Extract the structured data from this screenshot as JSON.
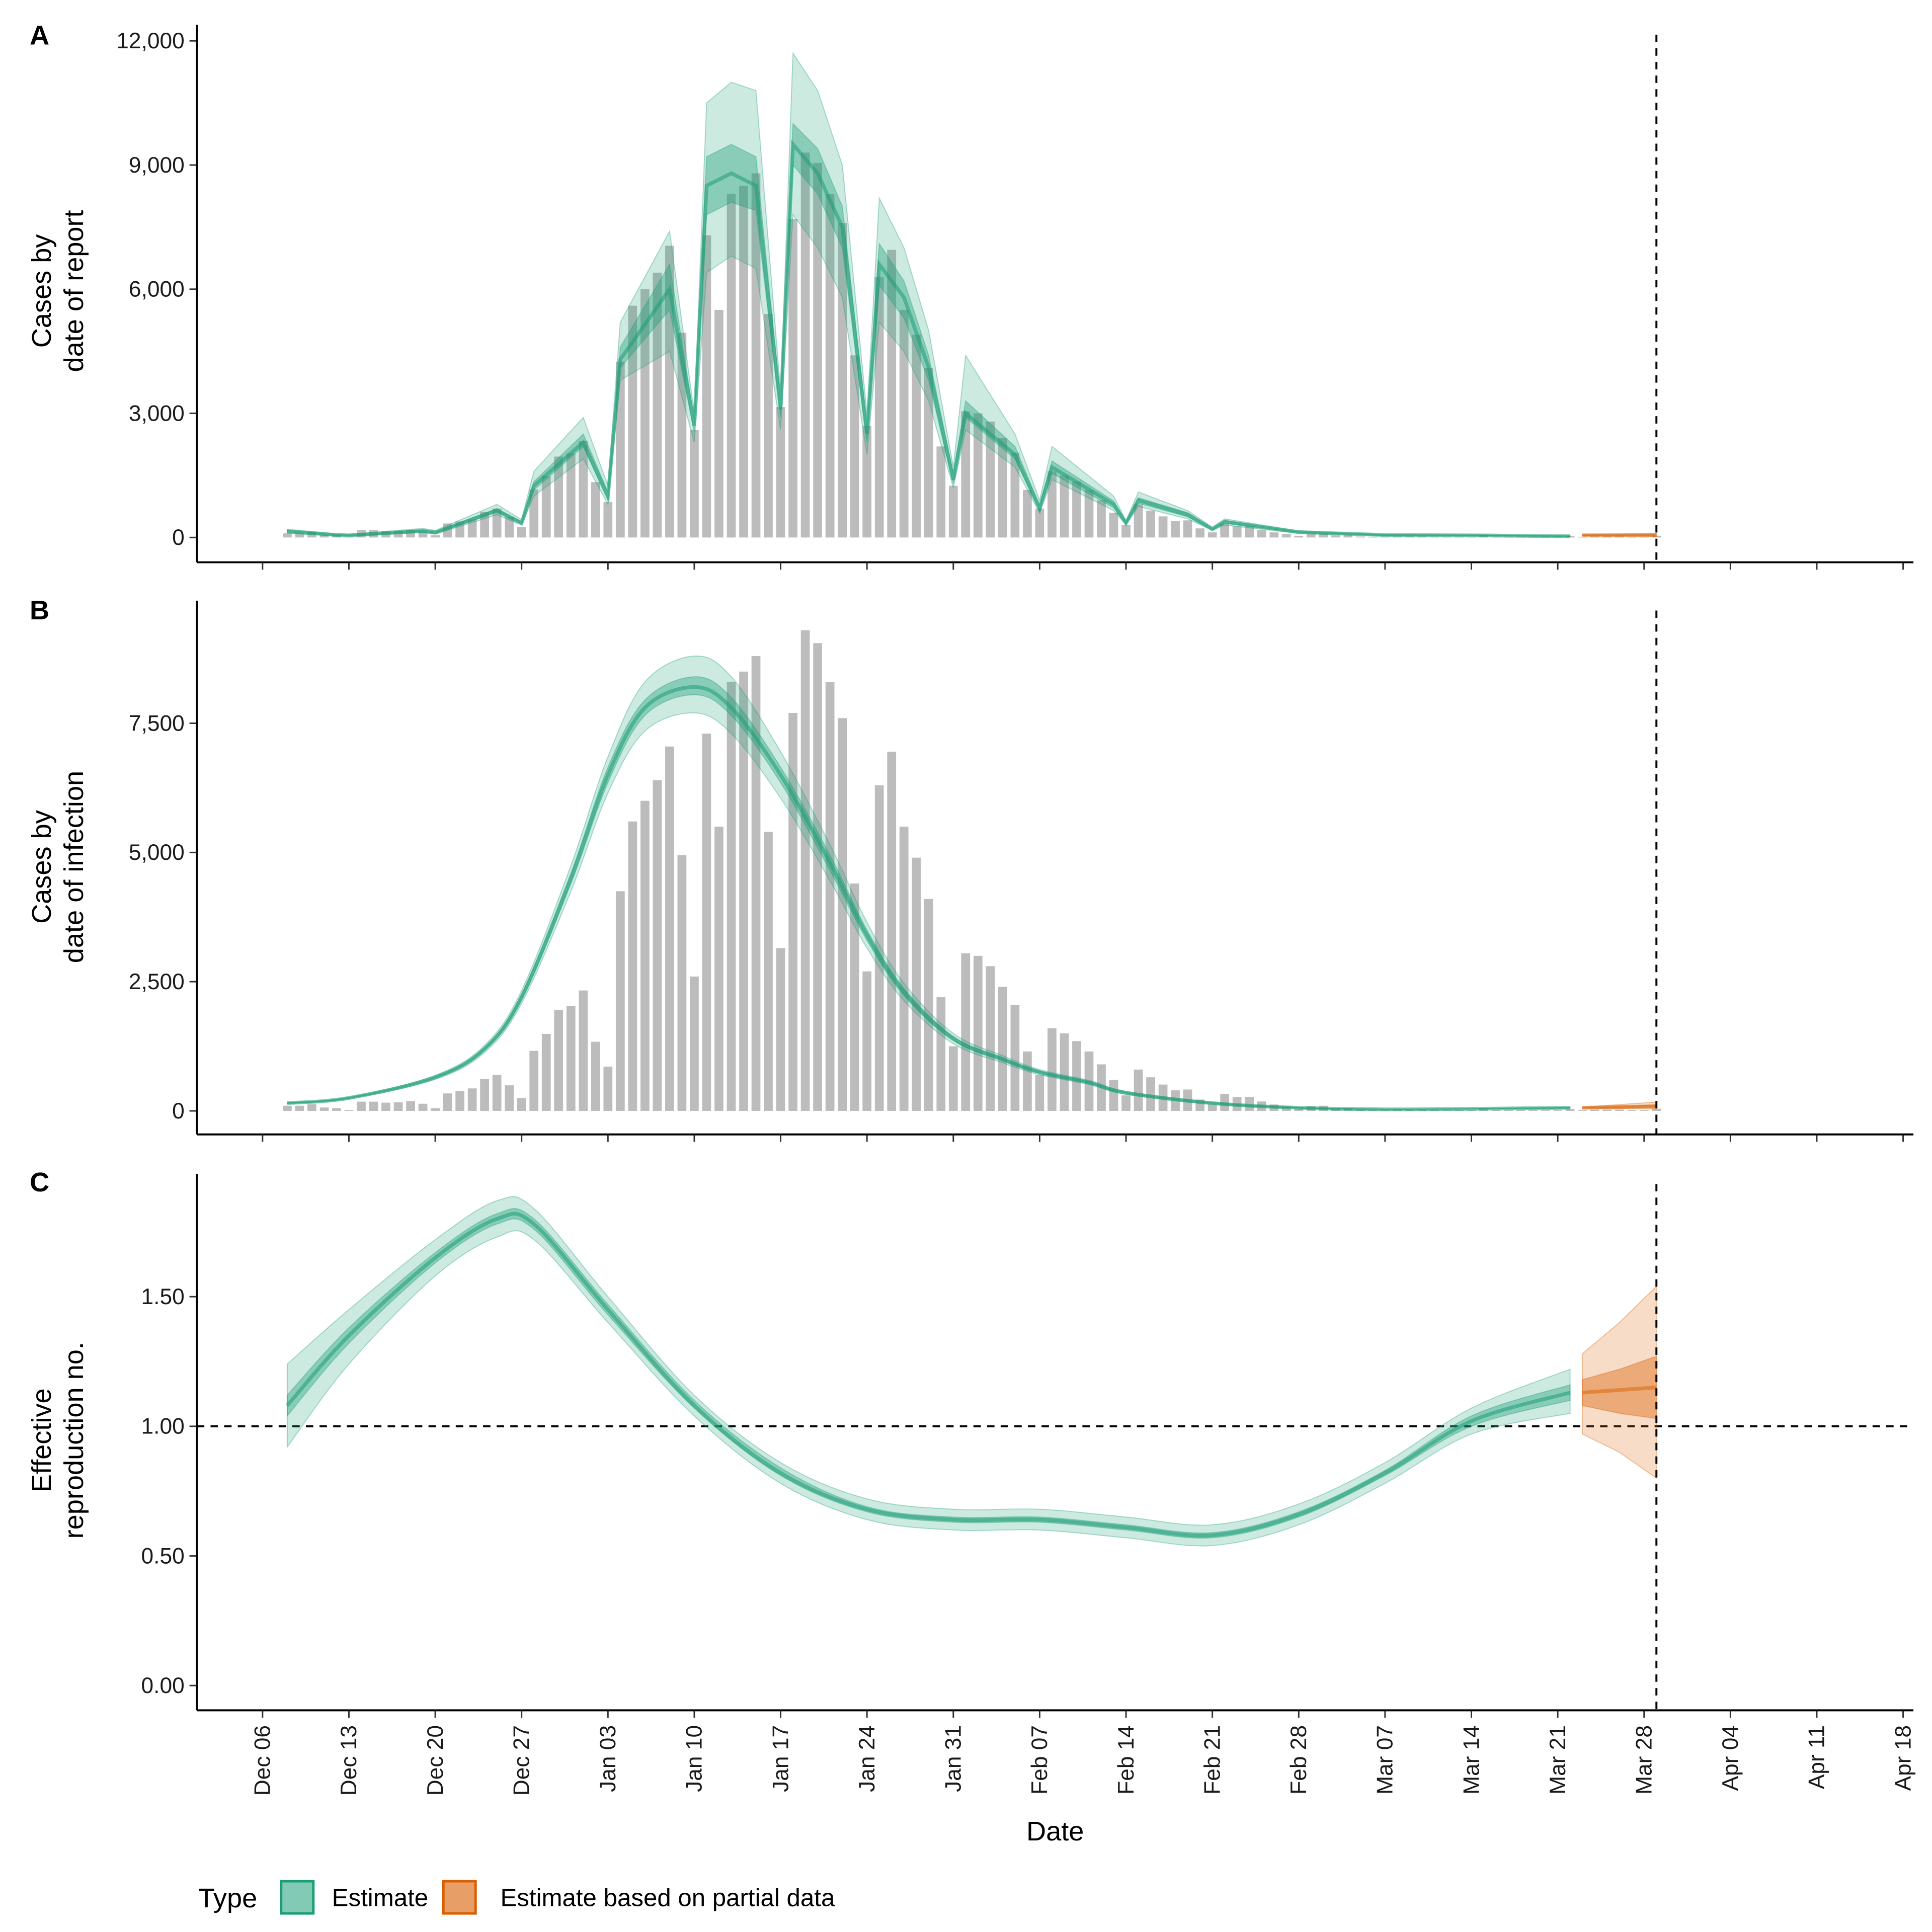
{
  "chart_data": [
    {
      "panel": "A",
      "type": "bar",
      "ylabel_lines": [
        "Cases by",
        "date of report"
      ],
      "ylim": [
        0,
        12000
      ],
      "yticks": [
        0,
        3000,
        6000,
        9000,
        12000
      ],
      "ytick_labels": [
        "0",
        "3,000",
        "6,000",
        "9,000",
        "12,000"
      ],
      "estimate_columns": [
        "date",
        "lower_90",
        "lower_50",
        "median",
        "upper_50",
        "upper_90"
      ],
      "estimate": [
        [
          "Dec 08",
          100,
          130,
          150,
          170,
          200
        ],
        [
          "Dec 12",
          40,
          55,
          60,
          70,
          90
        ],
        [
          "Dec 13",
          30,
          45,
          50,
          60,
          80
        ],
        [
          "Dec 19",
          120,
          140,
          160,
          180,
          220
        ],
        [
          "Dec 20",
          80,
          100,
          120,
          140,
          170
        ],
        [
          "Dec 25",
          550,
          620,
          650,
          700,
          800
        ],
        [
          "Dec 27",
          300,
          330,
          350,
          380,
          430
        ],
        [
          "Dec 28",
          1000,
          1150,
          1250,
          1350,
          1600
        ],
        [
          "Jan 01",
          1900,
          2200,
          2300,
          2500,
          2900
        ],
        [
          "Jan 03",
          800,
          900,
          1000,
          1100,
          1250
        ],
        [
          "Jan 04",
          3800,
          4100,
          4300,
          4600,
          5200
        ],
        [
          "Jan 08",
          4500,
          5500,
          6000,
          6600,
          7400
        ],
        [
          "Jan 10",
          2300,
          2550,
          2700,
          2850,
          3000
        ],
        [
          "Jan 11",
          6400,
          7800,
          8500,
          9200,
          10500
        ],
        [
          "Jan 13",
          6800,
          8100,
          8800,
          9500,
          11000
        ],
        [
          "Jan 15",
          6500,
          7900,
          8500,
          9200,
          10800
        ],
        [
          "Jan 17",
          2600,
          2900,
          3100,
          3300,
          3500
        ],
        [
          "Jan 18",
          7800,
          9000,
          9500,
          10000,
          11700
        ],
        [
          "Jan 20",
          7000,
          8300,
          8800,
          9400,
          10800
        ],
        [
          "Jan 22",
          5800,
          7000,
          7500,
          8000,
          9000
        ],
        [
          "Jan 24",
          2000,
          2300,
          2500,
          2700,
          3000
        ],
        [
          "Jan 25",
          5200,
          6100,
          6600,
          7100,
          8200
        ],
        [
          "Jan 27",
          4500,
          5300,
          5800,
          6200,
          7000
        ],
        [
          "Jan 29",
          3300,
          3800,
          4100,
          4400,
          5000
        ],
        [
          "Jan 31",
          1200,
          1300,
          1400,
          1550,
          1700
        ],
        [
          "Feb 01",
          2600,
          2900,
          3000,
          3300,
          4400
        ],
        [
          "Feb 05",
          1700,
          1900,
          2000,
          2200,
          2500
        ],
        [
          "Feb 07",
          600,
          650,
          700,
          780,
          900
        ],
        [
          "Feb 08",
          1400,
          1550,
          1700,
          1850,
          2200
        ],
        [
          "Feb 13",
          650,
          720,
          800,
          880,
          1000
        ],
        [
          "Feb 14",
          300,
          330,
          350,
          370,
          400
        ],
        [
          "Feb 15",
          750,
          830,
          900,
          960,
          1100
        ],
        [
          "Feb 19",
          450,
          500,
          550,
          600,
          650
        ],
        [
          "Feb 21",
          170,
          190,
          200,
          220,
          250
        ],
        [
          "Feb 22",
          300,
          350,
          380,
          410,
          450
        ],
        [
          "Feb 28",
          100,
          120,
          130,
          140,
          160
        ],
        [
          "Mar 07",
          40,
          50,
          60,
          65,
          75
        ],
        [
          "Mar 15",
          35,
          45,
          50,
          55,
          65
        ],
        [
          "Mar 22",
          20,
          25,
          30,
          35,
          45
        ]
      ],
      "partial": [
        [
          "Mar 23",
          40,
          50,
          55,
          60,
          70
        ],
        [
          "Mar 29",
          30,
          45,
          55,
          70,
          100
        ]
      ],
      "smooth": false
    },
    {
      "panel": "B",
      "type": "bar",
      "ylabel_lines": [
        "Cases by",
        "date of infection"
      ],
      "ylim": [
        0,
        9300
      ],
      "yticks": [
        0,
        2500,
        5000,
        7500
      ],
      "ytick_labels": [
        "0",
        "2,500",
        "5,000",
        "7,500"
      ],
      "estimate_columns": [
        "date",
        "lower_90",
        "lower_50",
        "median",
        "upper_50",
        "upper_90"
      ],
      "estimate": [
        [
          "Dec 08",
          140,
          145,
          150,
          155,
          160
        ],
        [
          "Dec 13",
          235,
          245,
          250,
          255,
          265
        ],
        [
          "Dec 20",
          610,
          635,
          650,
          665,
          690
        ],
        [
          "Dec 24",
          1130,
          1175,
          1200,
          1230,
          1270
        ],
        [
          "Dec 27",
          2080,
          2150,
          2200,
          2260,
          2330
        ],
        [
          "Dec 31",
          4250,
          4400,
          4500,
          4600,
          4750
        ],
        [
          "Jan 03",
          6150,
          6350,
          6500,
          6650,
          6850
        ],
        [
          "Jan 06",
          7350,
          7650,
          7800,
          7950,
          8300
        ],
        [
          "Jan 10",
          7700,
          8050,
          8200,
          8400,
          8800
        ],
        [
          "Jan 13",
          7300,
          7650,
          7800,
          8000,
          8400
        ],
        [
          "Jan 17",
          6050,
          6350,
          6500,
          6650,
          6950
        ],
        [
          "Jan 21",
          4450,
          4650,
          4800,
          4950,
          5150
        ],
        [
          "Jan 24",
          3150,
          3300,
          3400,
          3500,
          3650
        ],
        [
          "Jan 27",
          2130,
          2230,
          2300,
          2370,
          2470
        ],
        [
          "Jan 31",
          1300,
          1360,
          1400,
          1440,
          1500
        ],
        [
          "Feb 04",
          930,
          970,
          1000,
          1030,
          1070
        ],
        [
          "Feb 07",
          700,
          730,
          750,
          770,
          800
        ],
        [
          "Feb 11",
          510,
          535,
          550,
          565,
          590
        ],
        [
          "Feb 14",
          320,
          340,
          350,
          360,
          380
        ],
        [
          "Feb 21",
          130,
          145,
          150,
          155,
          170
        ],
        [
          "Feb 28",
          50,
          55,
          60,
          65,
          70
        ],
        [
          "Mar 07",
          25,
          28,
          30,
          32,
          35
        ],
        [
          "Mar 14",
          35,
          38,
          40,
          42,
          45
        ],
        [
          "Mar 22",
          50,
          56,
          60,
          64,
          70
        ]
      ],
      "partial": [
        [
          "Mar 23",
          45,
          55,
          60,
          65,
          75
        ],
        [
          "Mar 29",
          40,
          70,
          90,
          115,
          170
        ]
      ],
      "smooth": true
    },
    {
      "panel": "C",
      "type": "line",
      "ylabel_lines": [
        "Effective",
        "reproduction no."
      ],
      "ylim": [
        0,
        1.95
      ],
      "yticks": [
        0,
        0.5,
        1,
        1.5
      ],
      "ytick_labels": [
        "0.00",
        "0.50",
        "1.00",
        "1.50"
      ],
      "reference_line": 1.0,
      "estimate_columns": [
        "date",
        "lower_90",
        "lower_50",
        "median",
        "upper_50",
        "upper_90"
      ],
      "estimate": [
        [
          "Dec 08",
          0.92,
          1.04,
          1.08,
          1.12,
          1.24
        ],
        [
          "Dec 13",
          1.24,
          1.32,
          1.35,
          1.38,
          1.45
        ],
        [
          "Dec 20",
          1.58,
          1.63,
          1.65,
          1.67,
          1.72
        ],
        [
          "Dec 25",
          1.73,
          1.78,
          1.8,
          1.82,
          1.87
        ],
        [
          "Dec 28",
          1.72,
          1.76,
          1.78,
          1.8,
          1.84
        ],
        [
          "Jan 03",
          1.4,
          1.43,
          1.45,
          1.47,
          1.5
        ],
        [
          "Jan 10",
          1.04,
          1.07,
          1.08,
          1.1,
          1.12
        ],
        [
          "Jan 17",
          0.78,
          0.81,
          0.82,
          0.84,
          0.86
        ],
        [
          "Jan 24",
          0.64,
          0.67,
          0.68,
          0.69,
          0.72
        ],
        [
          "Jan 31",
          0.6,
          0.63,
          0.64,
          0.65,
          0.68
        ],
        [
          "Feb 07",
          0.6,
          0.63,
          0.64,
          0.65,
          0.68
        ],
        [
          "Feb 14",
          0.57,
          0.6,
          0.61,
          0.62,
          0.65
        ],
        [
          "Feb 21",
          0.54,
          0.57,
          0.58,
          0.59,
          0.62
        ],
        [
          "Feb 28",
          0.62,
          0.65,
          0.66,
          0.67,
          0.7
        ],
        [
          "Mar 07",
          0.78,
          0.81,
          0.82,
          0.83,
          0.86
        ],
        [
          "Mar 14",
          0.97,
          1.0,
          1.02,
          1.04,
          1.07
        ],
        [
          "Mar 22",
          1.05,
          1.1,
          1.13,
          1.16,
          1.22
        ]
      ],
      "partial": [
        [
          "Mar 23",
          0.97,
          1.08,
          1.13,
          1.18,
          1.28
        ],
        [
          "Mar 26",
          0.9,
          1.05,
          1.14,
          1.22,
          1.4
        ],
        [
          "Mar 29",
          0.8,
          1.03,
          1.15,
          1.27,
          1.54
        ]
      ],
      "smooth": true
    }
  ],
  "observed_cases": {
    "dates": [
      "Dec 08",
      "Dec 09",
      "Dec 10",
      "Dec 11",
      "Dec 12",
      "Dec 13",
      "Dec 14",
      "Dec 15",
      "Dec 16",
      "Dec 17",
      "Dec 18",
      "Dec 19",
      "Dec 20",
      "Dec 21",
      "Dec 22",
      "Dec 23",
      "Dec 24",
      "Dec 25",
      "Dec 26",
      "Dec 27",
      "Dec 28",
      "Dec 29",
      "Dec 30",
      "Dec 31",
      "Jan 01",
      "Jan 02",
      "Jan 03",
      "Jan 04",
      "Jan 05",
      "Jan 06",
      "Jan 07",
      "Jan 08",
      "Jan 09",
      "Jan 10",
      "Jan 11",
      "Jan 12",
      "Jan 13",
      "Jan 14",
      "Jan 15",
      "Jan 16",
      "Jan 17",
      "Jan 18",
      "Jan 19",
      "Jan 20",
      "Jan 21",
      "Jan 22",
      "Jan 23",
      "Jan 24",
      "Jan 25",
      "Jan 26",
      "Jan 27",
      "Jan 28",
      "Jan 29",
      "Jan 30",
      "Jan 31",
      "Feb 01",
      "Feb 02",
      "Feb 03",
      "Feb 04",
      "Feb 05",
      "Feb 06",
      "Feb 07",
      "Feb 08",
      "Feb 09",
      "Feb 10",
      "Feb 11",
      "Feb 12",
      "Feb 13",
      "Feb 14",
      "Feb 15",
      "Feb 16",
      "Feb 17",
      "Feb 18",
      "Feb 19",
      "Feb 20",
      "Feb 21",
      "Feb 22",
      "Feb 23",
      "Feb 24",
      "Feb 25",
      "Feb 26",
      "Feb 27",
      "Feb 28",
      "Mar 01",
      "Mar 02",
      "Mar 03",
      "Mar 04",
      "Mar 05",
      "Mar 06",
      "Mar 07",
      "Mar 08",
      "Mar 09",
      "Mar 10",
      "Mar 11",
      "Mar 12",
      "Mar 13",
      "Mar 14",
      "Mar 15",
      "Mar 16",
      "Mar 17",
      "Mar 18",
      "Mar 19",
      "Mar 20",
      "Mar 21",
      "Mar 22",
      "Mar 23",
      "Mar 24",
      "Mar 25",
      "Mar 26",
      "Mar 27",
      "Mar 28",
      "Mar 29"
    ],
    "values": [
      100,
      100,
      130,
      66,
      53,
      10,
      179,
      179,
      159,
      166,
      189,
      139,
      53,
      339,
      388,
      435,
      618,
      700,
      495,
      249,
      1162,
      1490,
      1955,
      2032,
      2330,
      1338,
      857,
      4250,
      5600,
      6000,
      6400,
      7050,
      4950,
      2600,
      7300,
      5500,
      8300,
      8500,
      8800,
      5400,
      3150,
      7700,
      9300,
      9050,
      8300,
      7600,
      4400,
      2700,
      6300,
      6950,
      5500,
      4900,
      4100,
      2200,
      1250,
      3050,
      3000,
      2800,
      2400,
      2050,
      1150,
      700,
      1600,
      1500,
      1350,
      1150,
      900,
      600,
      300,
      800,
      650,
      510,
      398,
      414,
      220,
      124,
      330,
      268,
      271,
      183,
      124,
      85,
      42,
      93,
      99,
      51,
      59,
      23,
      8,
      6,
      23,
      23,
      23,
      8,
      8,
      8,
      0,
      56,
      6,
      0,
      6,
      17,
      6,
      0,
      34,
      8,
      25,
      25,
      25,
      6,
      0,
      42
    ]
  },
  "x_axis": {
    "title": "Date",
    "tick_labels": [
      "Dec 06",
      "Dec 13",
      "Dec 20",
      "Dec 27",
      "Jan 03",
      "Jan 10",
      "Jan 17",
      "Jan 24",
      "Jan 31",
      "Feb 07",
      "Feb 14",
      "Feb 21",
      "Feb 28",
      "Mar 07",
      "Mar 14",
      "Mar 21",
      "Mar 28",
      "Apr 04",
      "Apr 11",
      "Apr 18"
    ],
    "vertical_marker": "Mar 29"
  },
  "panel_labels": [
    "A",
    "B",
    "C"
  ],
  "legend": {
    "title": "Type",
    "position": "bottom-left",
    "items": [
      {
        "label": "Estimate",
        "color": "#1b9e77"
      },
      {
        "label": "Estimate based on partial data",
        "color": "#d95f02"
      }
    ]
  },
  "colors": {
    "estimate": "#1b9e77",
    "partial": "#d95f02",
    "bars": "#a6a6a6"
  }
}
